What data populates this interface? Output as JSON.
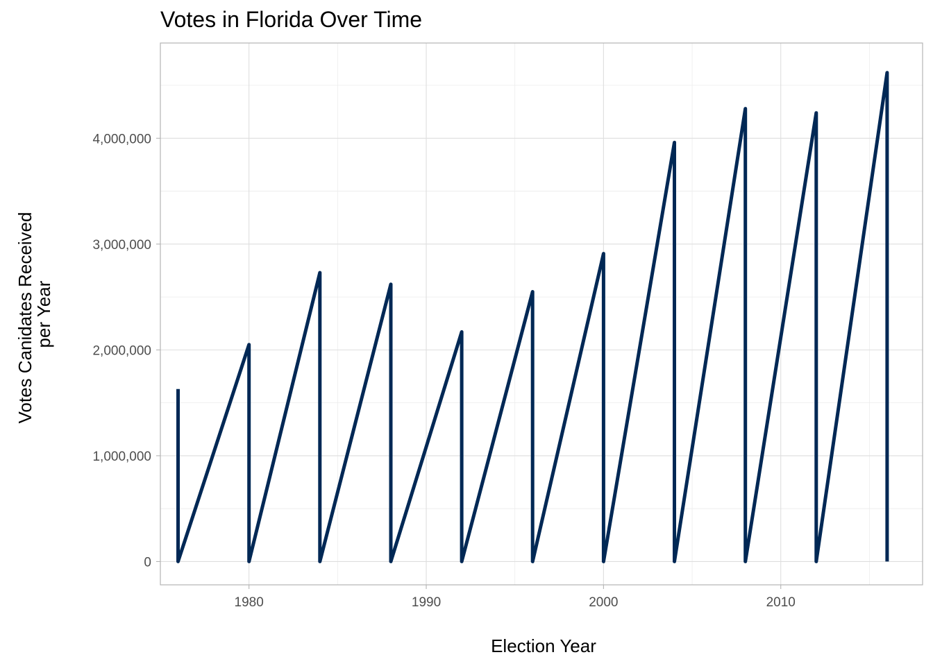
{
  "chart_data": {
    "type": "line",
    "title": "Votes in Florida Over Time",
    "xlabel": "Election Year",
    "ylabel_lines": [
      "Votes Canidates Received",
      "per Year"
    ],
    "xlim": [
      1975,
      2018
    ],
    "ylim": [
      -220000,
      4900000
    ],
    "x_ticks": [
      {
        "value": 1980,
        "label": "1980"
      },
      {
        "value": 1990,
        "label": "1990"
      },
      {
        "value": 2000,
        "label": "2000"
      },
      {
        "value": 2010,
        "label": "2010"
      }
    ],
    "x_minor": [
      1975,
      1985,
      1995,
      2005,
      2015
    ],
    "y_ticks": [
      {
        "value": 0,
        "label": "0"
      },
      {
        "value": 1000000,
        "label": "1,000,000"
      },
      {
        "value": 2000000,
        "label": "2,000,000"
      },
      {
        "value": 3000000,
        "label": "3,000,000"
      },
      {
        "value": 4000000,
        "label": "4,000,000"
      }
    ],
    "y_minor": [
      500000,
      1500000,
      2500000,
      3500000,
      4500000
    ],
    "grid": true,
    "line_color": "#002855",
    "series": [
      {
        "x": [
          1976,
          1976,
          1980,
          1980,
          1984,
          1984,
          1988,
          1988,
          1992,
          1992,
          1996,
          1996,
          2000,
          2000,
          2004,
          2004,
          2008,
          2008,
          2012,
          2012,
          2016,
          2016
        ],
        "y": [
          1630000,
          0,
          2050000,
          0,
          2730000,
          0,
          2620000,
          0,
          2170000,
          0,
          2550000,
          0,
          2910000,
          0,
          3960000,
          0,
          4280000,
          0,
          4240000,
          0,
          4620000,
          0
        ]
      }
    ]
  }
}
